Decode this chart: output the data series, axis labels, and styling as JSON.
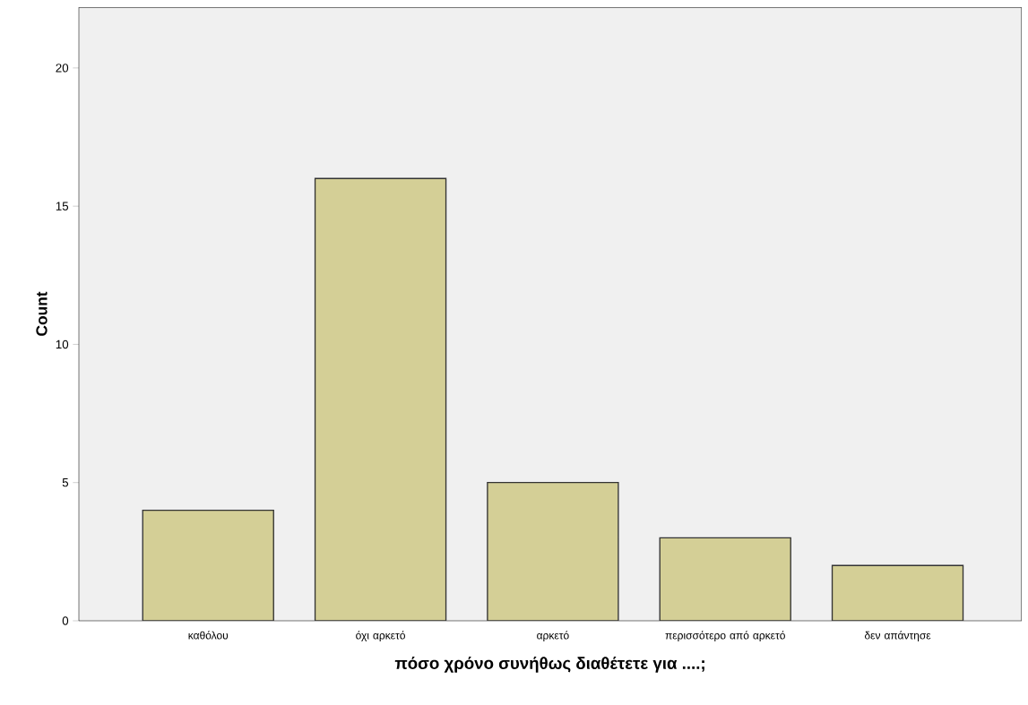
{
  "chart_data": {
    "type": "bar",
    "xlabel": "πόσο χρόνο συνήθως διαθέτετε για ....;",
    "ylabel": "Count",
    "categories": [
      "καθόλου",
      "όχι αρκετό",
      "αρκετό",
      "περισσότερο από αρκετό",
      "δεν απάντησε"
    ],
    "values": [
      4,
      16,
      5,
      3,
      2
    ],
    "color": "#d4cf96",
    "ylim": [
      0,
      22.2
    ],
    "yticks": [
      0,
      5,
      10,
      15,
      20
    ]
  }
}
